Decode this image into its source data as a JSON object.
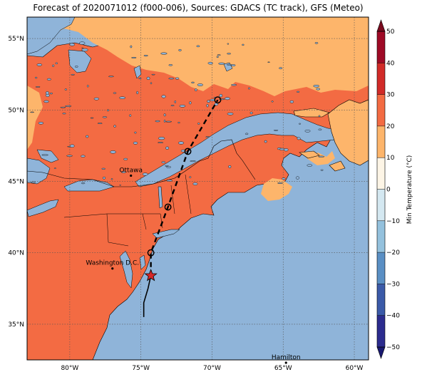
{
  "title": "Forecast of 2020071012 (f000-006), Sources: GDACS (TC track), GFS (Meteo)",
  "x_ticks": [
    "80°W",
    "75°W",
    "70°W",
    "65°W",
    "60°W"
  ],
  "y_ticks": [
    "55°N",
    "50°N",
    "45°N",
    "40°N",
    "35°N"
  ],
  "cities": [
    {
      "label": "Ottawa",
      "lon": -75.7,
      "lat": 45.4
    },
    {
      "label": "Washington D.C.",
      "lon": -77.0,
      "lat": 38.9
    },
    {
      "label": "Hamilton",
      "lon": -64.8,
      "lat": 32.3
    }
  ],
  "track": {
    "observed": [
      [
        -74.8,
        35.5
      ],
      [
        -74.8,
        36.5
      ],
      [
        -74.5,
        37.5
      ],
      [
        -74.3,
        38.4
      ]
    ],
    "current": [
      -74.3,
      38.4
    ],
    "forecast_points": [
      [
        -74.3,
        40.0
      ],
      [
        -73.1,
        43.2
      ],
      [
        -71.7,
        47.1
      ],
      [
        -69.6,
        50.7
      ]
    ],
    "colors": {
      "line": "#000000",
      "star": "#d62728"
    }
  },
  "colorbar": {
    "label": "Min Temperature (°C)",
    "tick_labels": [
      "50",
      "40",
      "30",
      "20",
      "10",
      "0",
      "−10",
      "−20",
      "−30",
      "−40",
      "−50"
    ],
    "bands": [
      {
        "from": -50,
        "to": -40,
        "color": "#2c2c8e"
      },
      {
        "from": -40,
        "to": -30,
        "color": "#3b5aa8"
      },
      {
        "from": -30,
        "to": -20,
        "color": "#5a8fc4"
      },
      {
        "from": -20,
        "to": -10,
        "color": "#94c1dd"
      },
      {
        "from": -10,
        "to": 0,
        "color": "#d4e8f1"
      },
      {
        "from": 0,
        "to": 10,
        "color": "#fdf5e6"
      },
      {
        "from": 10,
        "to": 20,
        "color": "#fdb56b"
      },
      {
        "from": 20,
        "to": 30,
        "color": "#f36b43"
      },
      {
        "from": 30,
        "to": 40,
        "color": "#d12b28"
      },
      {
        "from": 40,
        "to": 50,
        "color": "#9e0a26"
      }
    ],
    "under_color": "#191970",
    "over_color": "#7a0a1e"
  },
  "map_colors": {
    "ocean": "#8fb4d9",
    "band_10_20": "#fdb56b",
    "band_20_30": "#f36b43",
    "lake": "#8fb4d9"
  }
}
